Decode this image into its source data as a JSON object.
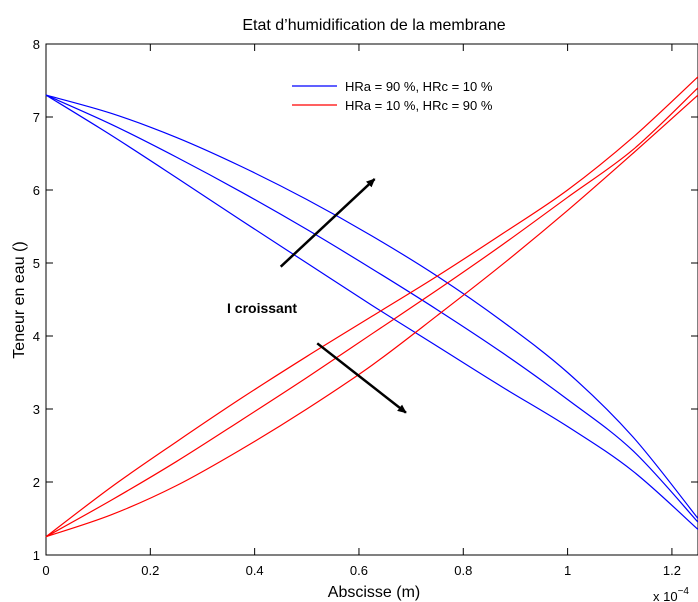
{
  "chart_data": {
    "type": "line",
    "title": "Etat d’humidification de la membrane",
    "xlabel": "Abscisse (m)",
    "ylabel": "Teneur en eau ()",
    "x_exponent_label": "x 10",
    "x_exponent_power": "−4",
    "xlim": [
      0,
      1.25
    ],
    "ylim": [
      1,
      8
    ],
    "xticks": [
      0,
      0.2,
      0.4,
      0.6,
      0.8,
      1,
      1.2
    ],
    "xtick_labels": [
      "0",
      "0.2",
      "0.4",
      "0.6",
      "0.8",
      "1",
      "1.2"
    ],
    "yticks": [
      1,
      2,
      3,
      4,
      5,
      6,
      7,
      8
    ],
    "ytick_labels": [
      "1",
      "2",
      "3",
      "4",
      "5",
      "6",
      "7",
      "8"
    ],
    "x": [
      0,
      0.125,
      0.25,
      0.375,
      0.5,
      0.625,
      0.75,
      0.875,
      1.0,
      1.125,
      1.25
    ],
    "series": [
      {
        "group": "HRa = 90 %,  HRc = 10 %",
        "color": "#0000ff",
        "values": [
          7.3,
          7.05,
          6.72,
          6.32,
          5.87,
          5.37,
          4.82,
          4.2,
          3.5,
          2.62,
          1.5
        ]
      },
      {
        "group": "HRa = 90 %,  HRc = 10 %",
        "color": "#0000ff",
        "values": [
          7.3,
          6.9,
          6.45,
          5.97,
          5.46,
          4.92,
          4.36,
          3.77,
          3.13,
          2.43,
          1.45
        ]
      },
      {
        "group": "HRa = 90 %,  HRc = 10 %",
        "color": "#0000ff",
        "values": [
          7.3,
          6.75,
          6.17,
          5.58,
          5.0,
          4.42,
          3.86,
          3.3,
          2.76,
          2.15,
          1.35
        ]
      },
      {
        "group": "HRa = 10 %,  HRc = 90 %",
        "color": "#ff0000",
        "values": [
          1.25,
          1.93,
          2.55,
          3.15,
          3.72,
          4.27,
          4.82,
          5.4,
          6.0,
          6.72,
          7.55
        ]
      },
      {
        "group": "HRa = 10 %,  HRc = 90 %",
        "color": "#ff0000",
        "values": [
          1.25,
          1.75,
          2.28,
          2.85,
          3.43,
          4.03,
          4.63,
          5.25,
          5.9,
          6.55,
          7.4
        ]
      },
      {
        "group": "HRa = 10 %,  HRc = 90 %",
        "color": "#ff0000",
        "values": [
          1.25,
          1.55,
          1.95,
          2.45,
          3.0,
          3.6,
          4.28,
          4.98,
          5.72,
          6.5,
          7.3
        ]
      }
    ],
    "legend": {
      "position": "top-right",
      "entries": [
        {
          "label": "HRa = 90 %,  HRc = 10 %",
          "color": "#0000ff"
        },
        {
          "label": "HRa = 10 %,  HRc = 90 %",
          "color": "#ff0000"
        }
      ]
    },
    "annotations": [
      {
        "text": "I croissant"
      }
    ],
    "arrows": [
      {
        "from": [
          0.45,
          4.95
        ],
        "to": [
          0.63,
          6.15
        ]
      },
      {
        "from": [
          0.52,
          3.9
        ],
        "to": [
          0.69,
          2.95
        ]
      }
    ],
    "grid": false
  }
}
